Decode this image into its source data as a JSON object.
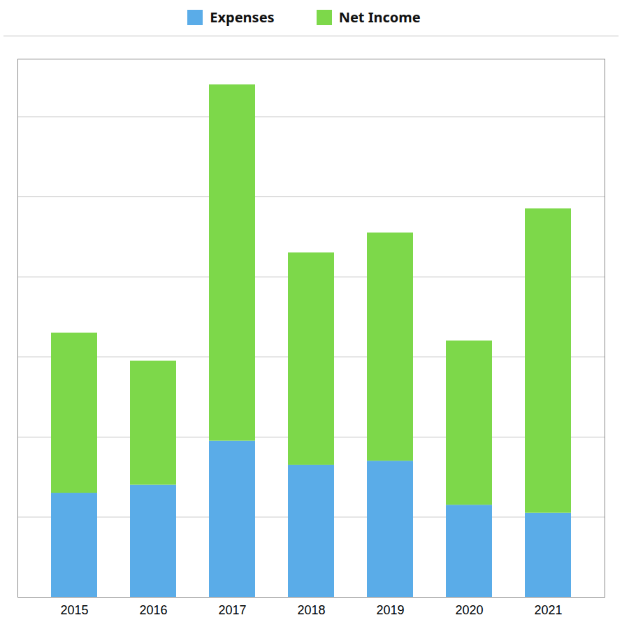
{
  "chart_data": {
    "type": "bar",
    "stacked": true,
    "categories": [
      "2015",
      "2016",
      "2017",
      "2018",
      "2019",
      "2020",
      "2021"
    ],
    "series": [
      {
        "name": "Expenses",
        "color": "#5aace8",
        "values": [
          130,
          140,
          195,
          165,
          170,
          115,
          105
        ]
      },
      {
        "name": "Net Income",
        "color": "#7dd84a",
        "values": [
          200,
          155,
          445,
          265,
          285,
          205,
          380
        ]
      }
    ],
    "ylim": [
      0,
      672
    ],
    "yticks": [
      0,
      100,
      200,
      300,
      400,
      500,
      600
    ],
    "grid": true,
    "legend": "top",
    "tick_labels": "x"
  }
}
